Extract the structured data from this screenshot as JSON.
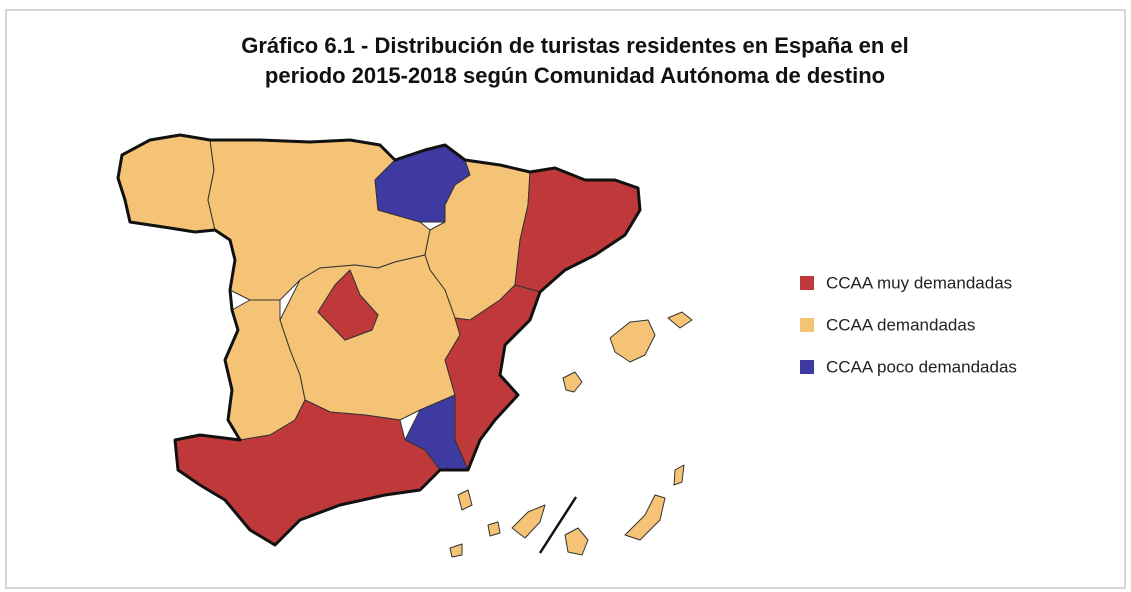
{
  "title": [
    "Gráfico 6.1 - Distribución de turistas residentes en España en el",
    "periodo 2015-2018 según Comunidad Autónoma de destino"
  ],
  "legend": [
    {
      "label": "CCAA muy demandadas",
      "color": "#c0393a"
    },
    {
      "label": "CCAA demandadas",
      "color": "#f5c375"
    },
    {
      "label": "CCAA poco demandadas",
      "color": "#3f3aa2"
    }
  ]
}
